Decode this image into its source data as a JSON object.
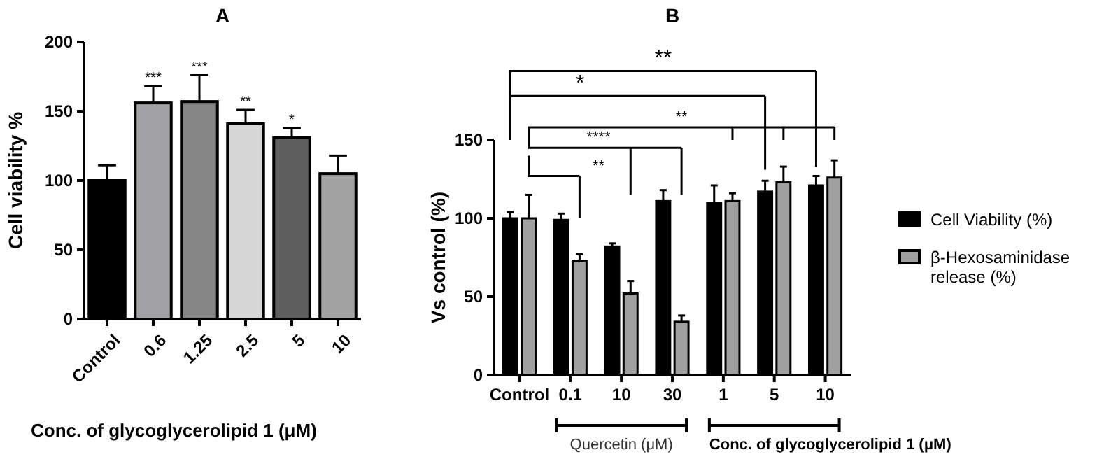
{
  "chart_data": [
    {
      "type": "bar",
      "title": "A",
      "ylabel": "Cell viability %",
      "xlabel": "Conc. of glycoglycerolipid 1 (μM)",
      "categories": [
        "Control",
        "0.6",
        "1.25",
        "2.5",
        "5",
        "10"
      ],
      "values": [
        100,
        156,
        157,
        141,
        131,
        105
      ],
      "colors": [
        "#000000",
        "#a2a2a6",
        "#858585",
        "#d6d6d6",
        "#5e5e5e",
        "#a3a3a3"
      ],
      "errors": [
        11,
        12,
        19,
        10,
        7,
        13
      ],
      "ylim": [
        0,
        200
      ],
      "yticks": [
        0,
        50,
        100,
        150,
        200
      ],
      "grid": false,
      "annotations": [
        {
          "text": "***",
          "x": "0.6",
          "y": 168
        },
        {
          "text": "***",
          "x": "1.25",
          "y": 176
        },
        {
          "text": "**",
          "x": "2.5",
          "y": 151
        },
        {
          "text": "*",
          "x": "5",
          "y": 138
        }
      ]
    },
    {
      "type": "bar",
      "title": "B",
      "ylabel": "Vs control (%)",
      "categories": [
        "Control",
        "0.1",
        "10",
        "30",
        "1",
        "5",
        "10"
      ],
      "series": [
        {
          "name": "Cell Viability (%)",
          "color": "#000000",
          "values": [
            100,
            99,
            82,
            111,
            110,
            117,
            121
          ],
          "errors": [
            4,
            4,
            2,
            7,
            11,
            7,
            6
          ]
        },
        {
          "name": "β-Hexosaminidase release (%)",
          "color": "#a0a0a0",
          "values": [
            100,
            73,
            52,
            34,
            111,
            123,
            126
          ],
          "errors": [
            15,
            4,
            8,
            4,
            5,
            10,
            11
          ]
        }
      ],
      "ylim": [
        0,
        150
      ],
      "yticks": [
        0,
        50,
        100,
        150
      ],
      "grid": false,
      "legend": "right",
      "annotations": [
        "**",
        "****",
        "**",
        "*",
        "**",
        "Quercetin (μM)",
        "Conc. of glycoglycerolipid 1 (μM)"
      ]
    }
  ]
}
